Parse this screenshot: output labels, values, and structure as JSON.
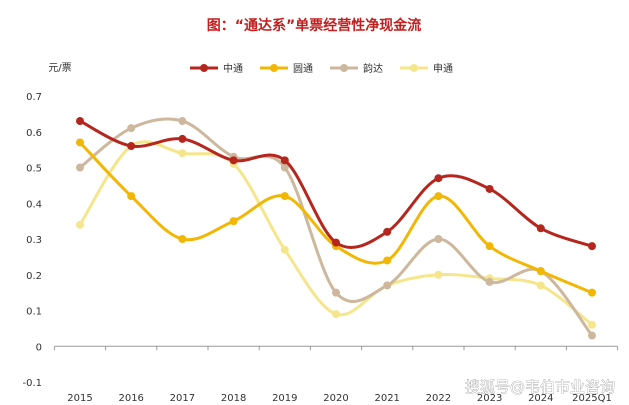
{
  "chart_data": {
    "type": "line",
    "title": "图：“通达系”单票经营性净现金流",
    "ylabel": "元/票",
    "categories": [
      "2015",
      "2016",
      "2017",
      "2018",
      "2019",
      "2020",
      "2021",
      "2022",
      "2023",
      "2024",
      "2025Q1"
    ],
    "ylim": [
      -0.1,
      0.7
    ],
    "yticks": [
      "-0.1",
      "0",
      "0.1",
      "0.2",
      "0.3",
      "0.4",
      "0.5",
      "0.6",
      "0.7"
    ],
    "ytick_values": [
      -0.1,
      0,
      0.1,
      0.2,
      0.3,
      0.4,
      0.5,
      0.6,
      0.7
    ],
    "grid": false,
    "legend_position": "top",
    "series": [
      {
        "name": "中通",
        "color": "#b5261e",
        "values": [
          0.63,
          0.56,
          0.58,
          0.52,
          0.52,
          0.29,
          0.32,
          0.47,
          0.44,
          0.33,
          0.28
        ]
      },
      {
        "name": "圆通",
        "color": "#f2b705",
        "values": [
          0.57,
          0.42,
          0.3,
          0.35,
          0.42,
          0.28,
          0.24,
          0.42,
          0.28,
          0.21,
          0.15
        ]
      },
      {
        "name": "韵达",
        "color": "#cdb89d",
        "values": [
          0.5,
          0.61,
          0.63,
          0.53,
          0.5,
          0.15,
          0.17,
          0.3,
          0.18,
          0.21,
          0.03
        ]
      },
      {
        "name": "申通",
        "color": "#f5e68c",
        "values": [
          0.34,
          0.56,
          0.54,
          0.51,
          0.27,
          0.09,
          0.17,
          0.2,
          0.19,
          0.17,
          0.06
        ]
      }
    ]
  },
  "watermark": "搜狐号@韦伯市业咨询"
}
